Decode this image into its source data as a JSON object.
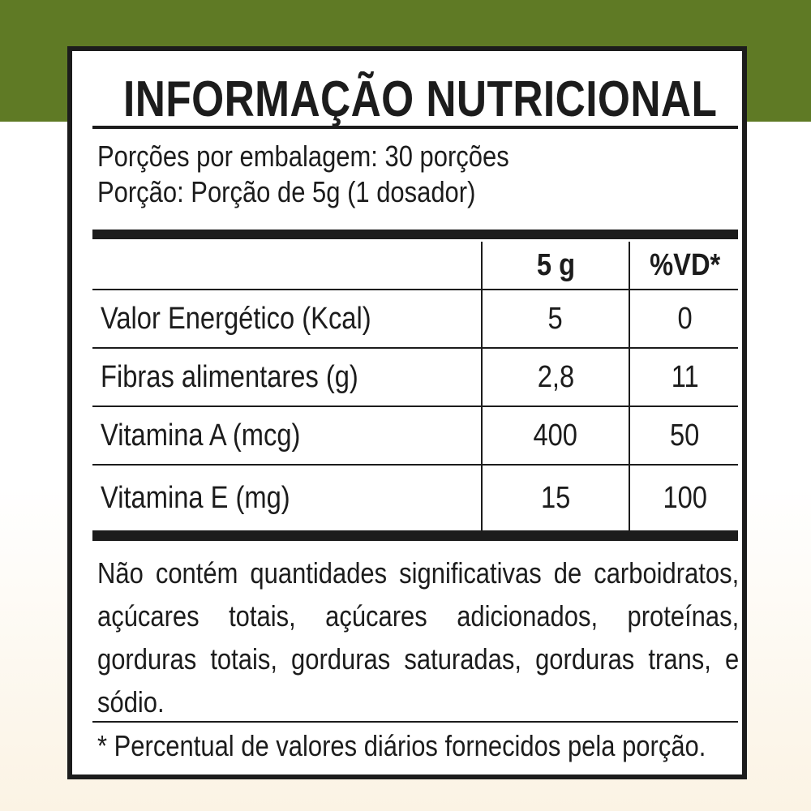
{
  "colors": {
    "band": "#5f7a25",
    "ink": "#1c1c1c"
  },
  "title": "INFORMAÇÃO NUTRICIONAL",
  "servings_per_package": "Porções por embalagem: 30 porções",
  "serving_size": "Porção: Porção de 5g (1 dosador)",
  "table": {
    "headers": [
      "",
      "5 g",
      "%VD*"
    ],
    "rows": [
      {
        "nutrient": "Valor Energético (Kcal)",
        "amount": "5",
        "dv": "0"
      },
      {
        "nutrient": "Fibras alimentares (g)",
        "amount": "2,8",
        "dv": "11"
      },
      {
        "nutrient": "Vitamina A (mcg)",
        "amount": "400",
        "dv": "50"
      },
      {
        "nutrient": "Vitamina E (mg)",
        "amount": "15",
        "dv": "100"
      }
    ]
  },
  "note": "Não contém quantidades significativas de carboidratos, açúcares totais, açúcares adicionados, proteínas, gorduras totais, gorduras saturadas, gorduras trans, e sódio.",
  "footnote": "* Percentual de valores diários fornecidos pela porção."
}
